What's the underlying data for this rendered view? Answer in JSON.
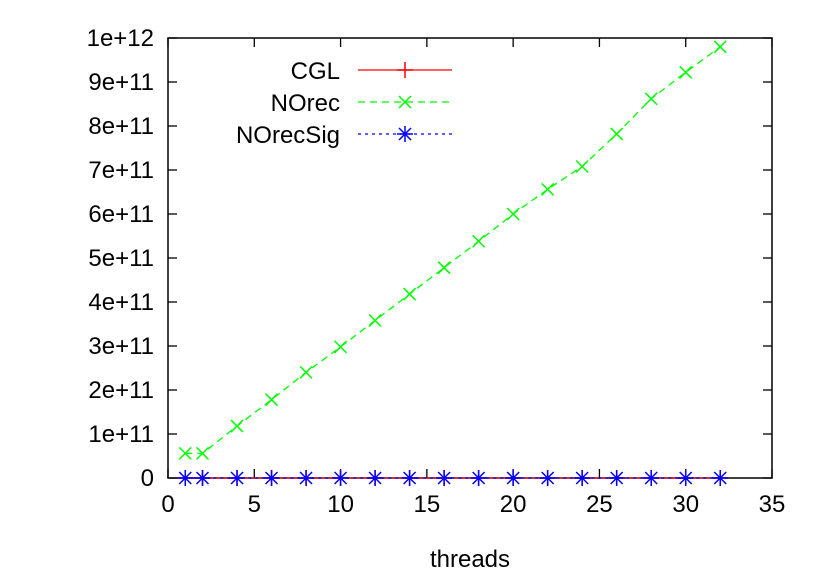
{
  "chart_data": {
    "type": "line",
    "title": "",
    "xlabel": "threads",
    "ylabel": "",
    "xlim": [
      0,
      35
    ],
    "ylim": [
      0,
      1000000000000
    ],
    "x_ticks": [
      0,
      5,
      10,
      15,
      20,
      25,
      30,
      35
    ],
    "x_tick_labels": [
      "0",
      "5",
      "10",
      "15",
      "20",
      "25",
      "30",
      "35"
    ],
    "y_ticks": [
      0,
      100000000000,
      200000000000,
      300000000000,
      400000000000,
      500000000000,
      600000000000,
      700000000000,
      800000000000,
      900000000000,
      1000000000000
    ],
    "y_tick_labels": [
      "0",
      "1e+11",
      "2e+11",
      "3e+11",
      "4e+11",
      "5e+11",
      "6e+11",
      "7e+11",
      "8e+11",
      "9e+11",
      "1e+12"
    ],
    "grid": false,
    "legend_position": "top-left",
    "series": [
      {
        "name": "CGL",
        "color": "#ff0000",
        "marker": "plus",
        "dash": "solid",
        "x": [
          1,
          2,
          4,
          6,
          8,
          10,
          12,
          14,
          16,
          18,
          20,
          22,
          24,
          26,
          28,
          30,
          32
        ],
        "values": [
          0,
          0,
          0,
          0,
          0,
          0,
          0,
          0,
          0,
          0,
          0,
          0,
          0,
          0,
          0,
          0,
          0
        ]
      },
      {
        "name": "NOrec",
        "color": "#00ff00",
        "marker": "x",
        "dash": "dashed",
        "x": [
          1,
          2,
          4,
          6,
          8,
          10,
          12,
          14,
          16,
          18,
          20,
          22,
          24,
          26,
          28,
          30,
          32
        ],
        "values": [
          56000000000,
          56000000000,
          118000000000,
          178000000000,
          240000000000,
          298000000000,
          358000000000,
          418000000000,
          478000000000,
          538000000000,
          600000000000,
          656000000000,
          708000000000,
          782000000000,
          862000000000,
          922000000000,
          980000000000
        ]
      },
      {
        "name": "NOrecSig",
        "color": "#0000ff",
        "marker": "star",
        "dash": "dotted",
        "x": [
          1,
          2,
          4,
          6,
          8,
          10,
          12,
          14,
          16,
          18,
          20,
          22,
          24,
          26,
          28,
          30,
          32
        ],
        "values": [
          0,
          0,
          0,
          0,
          0,
          0,
          0,
          0,
          0,
          0,
          0,
          0,
          0,
          0,
          0,
          0,
          0
        ]
      }
    ]
  }
}
